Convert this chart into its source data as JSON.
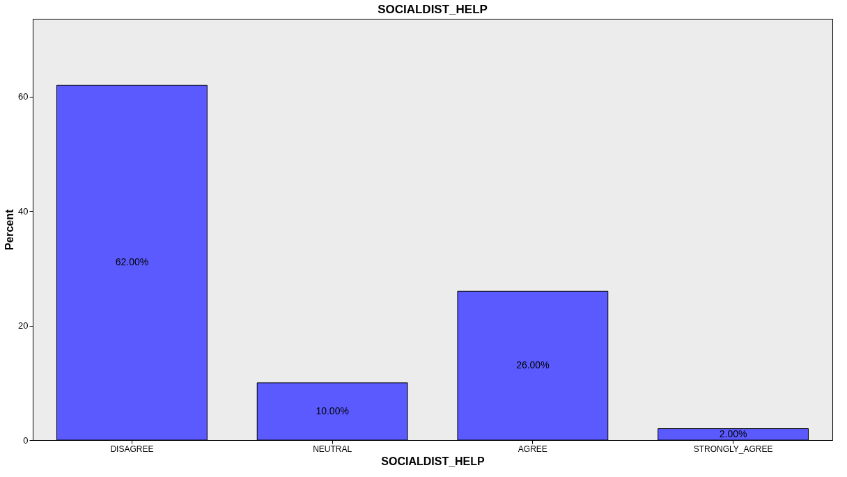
{
  "chart_data": {
    "type": "bar",
    "title": "SOCIALDIST_HELP",
    "xlabel": "SOCIALDIST_HELP",
    "ylabel": "Percent",
    "categories": [
      "DISAGREE",
      "NEUTRAL",
      "AGREE",
      "STRONGLY_AGREE"
    ],
    "values": [
      62,
      10,
      26,
      2
    ],
    "value_labels": [
      "62.00%",
      "10.00%",
      "26.00%",
      "2.00%"
    ],
    "color": "#5a5aff",
    "ylim": [
      0,
      73.6
    ],
    "yticks": [
      0,
      20,
      40,
      60
    ],
    "grid": false
  }
}
